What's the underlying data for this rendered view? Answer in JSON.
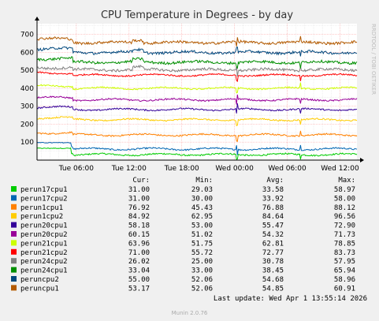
{
  "chart_data": {
    "type": "line",
    "title": "CPU Temperature in Degrees - by day",
    "side_label": "RRDTOOL / TOBI OETIKER",
    "footer": "Munin 2.0.76",
    "ylim": [
      0,
      760
    ],
    "yticks": [
      "100",
      "200",
      "300",
      "400",
      "500",
      "600",
      "700"
    ],
    "xticks": [
      "Tue 06:00",
      "Tue 12:00",
      "Tue 18:00",
      "Wed 00:00",
      "Wed 06:00",
      "Wed 12:00"
    ],
    "x_tick_hours": [
      6,
      12,
      18,
      24,
      30,
      36
    ],
    "x_range_hours": [
      1.53,
      37.93
    ],
    "table_headers": [
      "Cur:",
      "Min:",
      "Avg:",
      "Max:"
    ],
    "last_update": "Last update: Wed Apr  1 13:55:14 2026",
    "colors": {
      "background": "#f0f0f0",
      "plot_bg": "#ffffff",
      "grid": "#e0e0e0",
      "major_grid": "#ffaaaa",
      "axis": "#000000",
      "text": "#000000",
      "title": "#333333",
      "footer": "#aaaaaa"
    },
    "series": [
      {
        "name": "perun17cpu1",
        "color": "#00cc00",
        "cur": "31.00",
        "min": "29.03",
        "avg": "33.58",
        "max": "58.97",
        "offset": 0
      },
      {
        "name": "perun17cpu2",
        "color": "#0066b3",
        "cur": "31.00",
        "min": "30.00",
        "avg": "33.92",
        "max": "58.00",
        "offset": 0
      },
      {
        "name": "perun1cpu1",
        "color": "#ff8000",
        "cur": "76.92",
        "min": "45.43",
        "avg": "76.88",
        "max": "88.12",
        "offset": 0
      },
      {
        "name": "perun1cpu2",
        "color": "#ffcc00",
        "cur": "84.92",
        "min": "62.95",
        "avg": "84.64",
        "max": "96.56",
        "offset": 0
      },
      {
        "name": "perun20cpu1",
        "color": "#330099",
        "cur": "58.18",
        "min": "53.00",
        "avg": "55.47",
        "max": "72.90",
        "offset": 0
      },
      {
        "name": "perun20cpu2",
        "color": "#990099",
        "cur": "60.15",
        "min": "51.02",
        "avg": "54.32",
        "max": "71.73",
        "offset": 0
      },
      {
        "name": "perun21cpu1",
        "color": "#ccff00",
        "cur": "63.96",
        "min": "51.75",
        "avg": "62.81",
        "max": "78.85",
        "offset": 0
      },
      {
        "name": "perun21cpu2",
        "color": "#ff0000",
        "cur": "71.00",
        "min": "55.72",
        "avg": "72.77",
        "max": "83.73",
        "offset": 0
      },
      {
        "name": "perun24cpu2",
        "color": "#808080",
        "cur": "26.02",
        "min": "25.00",
        "avg": "30.78",
        "max": "57.95",
        "offset": 0
      },
      {
        "name": "perun24cpu1",
        "color": "#008f00",
        "cur": "33.04",
        "min": "33.00",
        "avg": "38.45",
        "max": "65.94",
        "offset": 0
      },
      {
        "name": "peruncpu2",
        "color": "#00487d",
        "cur": "55.00",
        "min": "52.06",
        "avg": "54.68",
        "max": "58.96",
        "offset": 0
      },
      {
        "name": "peruncpu1",
        "color": "#b35a00",
        "cur": "53.17",
        "min": "52.06",
        "avg": "54.85",
        "max": "60.91",
        "offset": 0
      }
    ],
    "series_cumulative": [
      {
        "name": "perun17cpu1",
        "level": 31
      },
      {
        "name": "perun17cpu2",
        "level": 62
      },
      {
        "name": "perun1cpu1",
        "level": 140
      },
      {
        "name": "perun1cpu2",
        "level": 225
      },
      {
        "name": "perun20cpu1",
        "level": 282
      },
      {
        "name": "perun20cpu2",
        "level": 336
      },
      {
        "name": "perun21cpu1",
        "level": 400
      },
      {
        "name": "perun21cpu2",
        "level": 473
      },
      {
        "name": "perun24cpu2",
        "level": 503
      },
      {
        "name": "perun24cpu1",
        "level": 545
      },
      {
        "name": "peruncpu2",
        "level": 600
      },
      {
        "name": "peruncpu1",
        "level": 655
      }
    ]
  }
}
